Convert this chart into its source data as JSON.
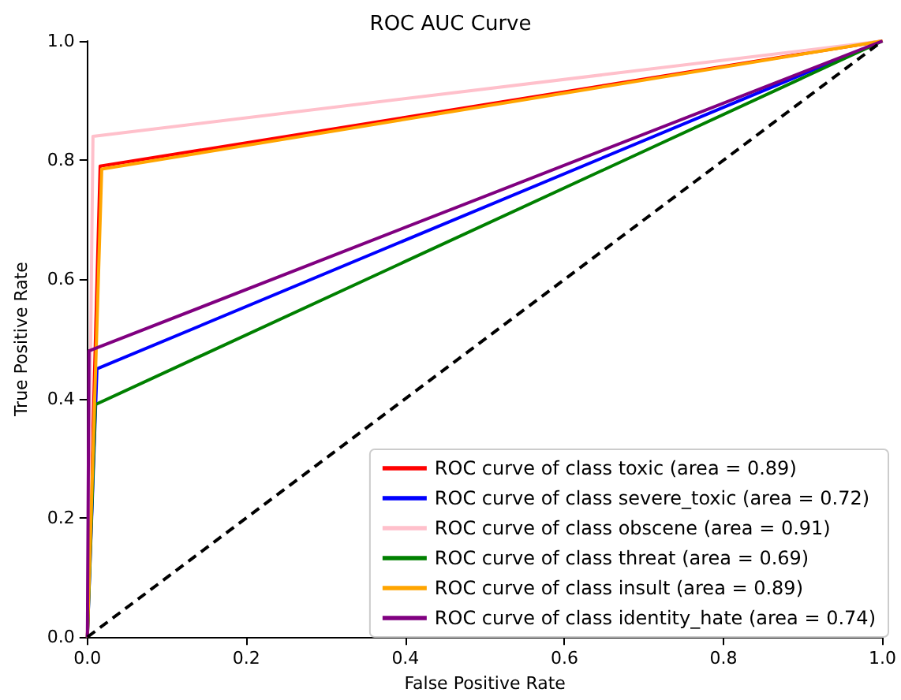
{
  "chart_data": {
    "type": "line",
    "title": "ROC AUC Curve",
    "xlabel": "False Positive Rate",
    "ylabel": "True Positive Rate",
    "xlim": [
      0,
      1
    ],
    "ylim": [
      0,
      1
    ],
    "xticks": [
      {
        "value": 0,
        "label": "0.0"
      },
      0.2,
      0.4,
      0.6,
      0.8,
      {
        "value": 1,
        "label": "1.0"
      }
    ],
    "yticks": [
      {
        "value": 0,
        "label": "0.0"
      },
      0.2,
      0.4,
      0.6,
      0.8,
      {
        "value": 1,
        "label": "1.0"
      }
    ],
    "legend": "bottom right",
    "grid": false,
    "marker": "none",
    "series": [
      {
        "name": "ROC curve of class toxic (area = 0.89)",
        "color": "#ff0000",
        "x": [
          0,
          0.016,
          1
        ],
        "values": [
          0,
          0.79,
          1
        ]
      },
      {
        "name": "ROC curve of class severe_toxic (area = 0.72)",
        "color": "#0000ff",
        "x": [
          0,
          0.012,
          1
        ],
        "values": [
          0,
          0.45,
          1
        ]
      },
      {
        "name": "ROC curve of class obscene (area = 0.91)",
        "color": "#ffc0cb",
        "x": [
          0,
          0.007,
          1
        ],
        "values": [
          0,
          0.84,
          1
        ]
      },
      {
        "name": "ROC curve of class threat (area = 0.69)",
        "color": "#008000",
        "x": [
          0,
          0.01,
          1
        ],
        "values": [
          0,
          0.39,
          1
        ]
      },
      {
        "name": "ROC curve of class insult (area = 0.89)",
        "color": "#ffa500",
        "x": [
          0,
          0.018,
          1
        ],
        "values": [
          0,
          0.785,
          1
        ]
      },
      {
        "name": "ROC curve of class identity_hate (area = 0.74)",
        "color": "#800080",
        "x": [
          0,
          0.002,
          1
        ],
        "values": [
          0,
          0.48,
          1
        ]
      },
      {
        "color": "#000000",
        "x": [
          0,
          1
        ],
        "values": [
          0,
          1
        ],
        "line_style": "dashed"
      }
    ]
  }
}
